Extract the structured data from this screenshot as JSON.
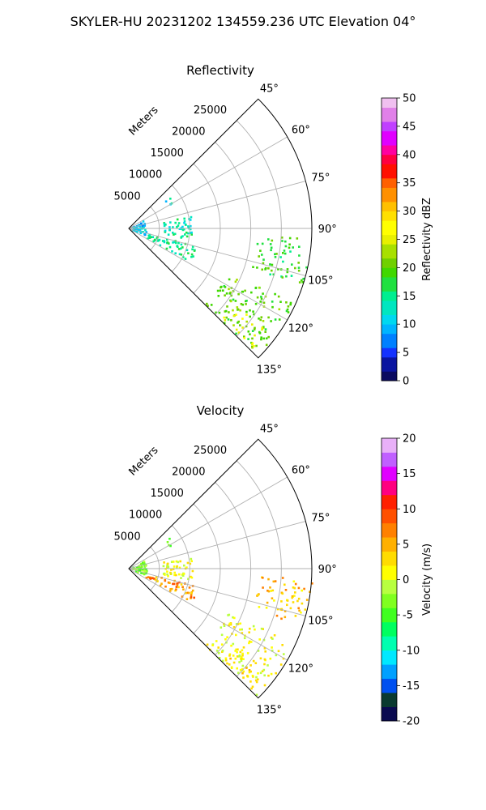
{
  "figure": {
    "suptitle": "SKYLER-HU  20231202  134559.236 UTC Elevation 04°"
  },
  "chart_data": [
    {
      "type": "polar-sector",
      "title": "Reflectivity",
      "range_label": "Meters",
      "range_ticks": [
        5000,
        10000,
        15000,
        20000,
        25000
      ],
      "azimuth_ticks": [
        "45°",
        "60°",
        "75°",
        "90°",
        "105°",
        "120°",
        "135°"
      ],
      "azimuth_range_deg": [
        45,
        135
      ],
      "range_max_m": 30000,
      "grid": true,
      "colorbar": {
        "label": "Reflectivity dBZ",
        "range": [
          0,
          50
        ],
        "ticks": [
          0,
          5,
          10,
          15,
          20,
          25,
          30,
          35,
          40,
          45,
          50
        ]
      },
      "echo_regions": [
        {
          "az": [
            52,
            60
          ],
          "r_m": [
            7500,
            8500
          ],
          "level": 12
        },
        {
          "az": [
            58,
            112
          ],
          "r_m": [
            500,
            2800
          ],
          "level": 10
        },
        {
          "az": [
            78,
            100
          ],
          "r_m": [
            5500,
            10500
          ],
          "level": 14
        },
        {
          "az": [
            104,
            118
          ],
          "r_m": [
            3000,
            11500
          ],
          "level": 15
        },
        {
          "az": [
            93,
            108
          ],
          "r_m": [
            21000,
            30000
          ],
          "level": 18
        },
        {
          "az": [
            114,
            135
          ],
          "r_m": [
            17500,
            29500
          ],
          "level": 20
        },
        {
          "az": [
            126,
            134
          ],
          "r_m": [
            21000,
            28000
          ],
          "level": 24
        }
      ]
    },
    {
      "type": "polar-sector",
      "title": "Velocity",
      "range_label": "Meters",
      "range_ticks": [
        5000,
        10000,
        15000,
        20000,
        25000
      ],
      "azimuth_ticks": [
        "45°",
        "60°",
        "75°",
        "90°",
        "105°",
        "120°",
        "135°"
      ],
      "azimuth_range_deg": [
        45,
        135
      ],
      "range_max_m": 30000,
      "grid": true,
      "colorbar": {
        "label": "Velocity (m/s)",
        "range": [
          -20,
          20
        ],
        "ticks": [
          -20,
          -15,
          -10,
          -5,
          0,
          5,
          10,
          15,
          20
        ]
      },
      "echo_regions": [
        {
          "az": [
            52,
            60
          ],
          "r_m": [
            7500,
            8500
          ],
          "level": -2
        },
        {
          "az": [
            58,
            112
          ],
          "r_m": [
            500,
            2800
          ],
          "level": -3
        },
        {
          "az": [
            78,
            100
          ],
          "r_m": [
            5500,
            10500
          ],
          "level": 1
        },
        {
          "az": [
            104,
            118
          ],
          "r_m": [
            3000,
            11500
          ],
          "level": 6
        },
        {
          "az": [
            93,
            108
          ],
          "r_m": [
            21000,
            30000
          ],
          "level": 4
        },
        {
          "az": [
            114,
            135
          ],
          "r_m": [
            17500,
            29500
          ],
          "level": 1
        },
        {
          "az": [
            126,
            134
          ],
          "r_m": [
            21000,
            28000
          ],
          "level": 2
        }
      ]
    }
  ]
}
